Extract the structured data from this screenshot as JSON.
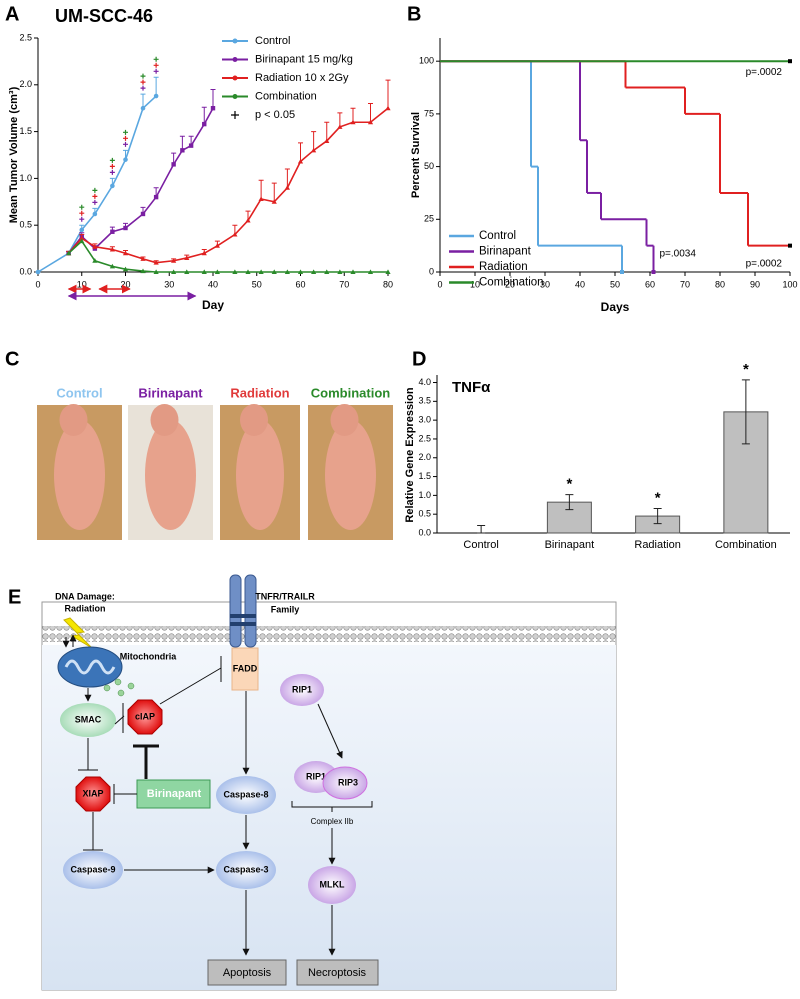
{
  "panel_labels": [
    "A",
    "B",
    "C",
    "D",
    "E"
  ],
  "chart_data": [
    {
      "type": "line",
      "title": "UM-SCC-46",
      "x_label": "Day",
      "y_label": "Mean Tumor Volume (cm³)",
      "xlim": [
        0,
        80
      ],
      "xticks": [
        0,
        10,
        20,
        30,
        40,
        50,
        60,
        70,
        80
      ],
      "ylim": [
        0,
        2.5
      ],
      "yticks": [
        {
          "value": 0,
          "label": "0.0"
        },
        0.5,
        {
          "value": 1,
          "label": "1.0"
        },
        1.5,
        {
          "value": 2,
          "label": "2.0"
        },
        2.5
      ],
      "series": [
        {
          "name": "Control",
          "color": "#5aa7e0",
          "marker": "circle",
          "x": [
            0,
            7,
            10,
            13,
            17,
            20,
            24,
            27
          ],
          "values": [
            0,
            0.2,
            0.45,
            0.62,
            0.92,
            1.2,
            1.75,
            1.88
          ],
          "errors": [
            0,
            0.02,
            0.05,
            0.06,
            0.08,
            0.1,
            0.15,
            0.2
          ]
        },
        {
          "name": "Birinapant 15 mg/kg",
          "color": "#7a1fa2",
          "marker": "square",
          "x": [
            7,
            10,
            13,
            17,
            20,
            24,
            27,
            31,
            33,
            35,
            38,
            40
          ],
          "values": [
            0.2,
            0.38,
            0.25,
            0.43,
            0.47,
            0.62,
            0.8,
            1.15,
            1.3,
            1.35,
            1.58,
            1.75
          ],
          "errors": [
            0.02,
            0.04,
            0.03,
            0.05,
            0.05,
            0.07,
            0.1,
            0.12,
            0.15,
            0.1,
            0.18,
            0.2
          ]
        },
        {
          "name": "Radiation 10 x 2Gy",
          "color": "#e02020",
          "marker": "triangle",
          "x": [
            7,
            10,
            13,
            17,
            20,
            24,
            27,
            31,
            34,
            38,
            41,
            45,
            48,
            51,
            54,
            57,
            60,
            63,
            66,
            69,
            72,
            76,
            80
          ],
          "values": [
            0.2,
            0.36,
            0.27,
            0.24,
            0.2,
            0.14,
            0.1,
            0.12,
            0.15,
            0.2,
            0.28,
            0.4,
            0.55,
            0.78,
            0.75,
            0.9,
            1.18,
            1.3,
            1.4,
            1.55,
            1.6,
            1.6,
            1.75
          ],
          "errors": [
            0.02,
            0.04,
            0.03,
            0.03,
            0.03,
            0.02,
            0.02,
            0.02,
            0.03,
            0.04,
            0.05,
            0.1,
            0.1,
            0.2,
            0.2,
            0.2,
            0.2,
            0.2,
            0.2,
            0.15,
            0.15,
            0.2,
            0.3
          ]
        },
        {
          "name": "Combination",
          "color": "#2a8a2a",
          "marker": "triangle",
          "x": [
            7,
            10,
            13,
            17,
            20,
            24,
            27,
            31,
            34,
            38,
            41,
            45,
            48,
            51,
            54,
            57,
            60,
            63,
            66,
            69,
            72,
            76,
            80
          ],
          "values": [
            0.2,
            0.33,
            0.12,
            0.06,
            0.03,
            0.01,
            0,
            0,
            0,
            0,
            0,
            0,
            0,
            0,
            0,
            0,
            0,
            0,
            0,
            0,
            0,
            0,
            0
          ]
        }
      ],
      "significance_label": "p < 0.05",
      "significance_days": [
        10,
        13,
        17,
        20,
        24,
        27
      ],
      "treatment_periods": [
        {
          "series": "Radiation 10 x 2Gy",
          "start": 7,
          "end": 12
        },
        {
          "series": "Radiation 10 x 2Gy",
          "start": 14,
          "end": 21
        },
        {
          "series": "Birinapant 15 mg/kg",
          "start": 7,
          "end": 36
        }
      ]
    },
    {
      "type": "line",
      "step": true,
      "x_label": "Days",
      "y_label": "Percent Survival",
      "xlim": [
        0,
        100
      ],
      "xticks": [
        0,
        10,
        20,
        30,
        40,
        50,
        60,
        70,
        80,
        90,
        100
      ],
      "ylim": [
        0,
        111
      ],
      "yticks": [
        0,
        25,
        50,
        75,
        100
      ],
      "legend": "lower left",
      "series": [
        {
          "name": "Control",
          "color": "#5aa7e0",
          "x": [
            0,
            26,
            28,
            52
          ],
          "values": [
            100,
            50,
            12.5,
            0
          ]
        },
        {
          "name": "Birinapant",
          "color": "#7a1fa2",
          "x": [
            0,
            40,
            42,
            46,
            59,
            61
          ],
          "values": [
            100,
            62.5,
            37.5,
            25,
            12.5,
            0
          ]
        },
        {
          "name": "Radiation",
          "color": "#e02020",
          "x": [
            0,
            53,
            70,
            80,
            88,
            100
          ],
          "values": [
            100,
            87.5,
            75,
            37.5,
            12.5,
            12.5
          ]
        },
        {
          "name": "Combination",
          "color": "#2a8a2a",
          "x": [
            0,
            100
          ],
          "values": [
            100,
            100
          ]
        }
      ],
      "annotations": [
        {
          "text": "p=.0002",
          "series": "Combination"
        },
        {
          "text": "p=.0034",
          "series": "Birinapant"
        },
        {
          "text": "p=.0002",
          "series": "Radiation"
        }
      ]
    },
    {
      "type": "bar",
      "title": "TNFα",
      "y_label": "Relative Gene Expression",
      "categories": [
        "Control",
        "Birinapant",
        "Radiation",
        "Combination"
      ],
      "values": [
        0,
        0.82,
        0.45,
        3.22
      ],
      "errors": [
        0.2,
        0.2,
        0.2,
        0.85
      ],
      "color": "#bfbfbf",
      "ylim": [
        0,
        4.2
      ],
      "yticks": [
        {
          "value": 0,
          "label": "0.0"
        },
        0.5,
        {
          "value": 1,
          "label": "1.0"
        },
        1.5,
        {
          "value": 2,
          "label": "2.0"
        },
        2.5,
        {
          "value": 3,
          "label": "3.0"
        },
        3.5,
        {
          "value": 4,
          "label": "4.0"
        }
      ],
      "significance_mark": "*",
      "significant": [
        false,
        true,
        true,
        true
      ]
    }
  ],
  "photos": [
    {
      "text": "Control",
      "color": "#8ec5ef"
    },
    {
      "text": "Birinapant",
      "color": "#7a1fa2"
    },
    {
      "text": "Radiation",
      "color": "#e03a3a"
    },
    {
      "text": "Combination",
      "color": "#2a8a2a"
    }
  ],
  "diagram": {
    "dna_damage": [
      "DNA Damage:",
      "Radiation"
    ],
    "mitochondria": "Mitochondria",
    "smac": "SMAC",
    "ciap": "cIAP",
    "xiap": "XIAP",
    "birinapant": "Birinapant",
    "caspase9": "Caspase-9",
    "caspase8": "Caspase-8",
    "caspase3": "Caspase-3",
    "fadd": "FADD",
    "receptor": [
      "TNFR/TRAILR",
      "Family"
    ],
    "rip1_a": "RIP1",
    "rip1_b": "RIP1",
    "rip3": "RIP3",
    "complex": "Complex IIb",
    "mlkl": "MLKL",
    "apoptosis": "Apoptosis",
    "necroptosis": "Necroptosis"
  }
}
